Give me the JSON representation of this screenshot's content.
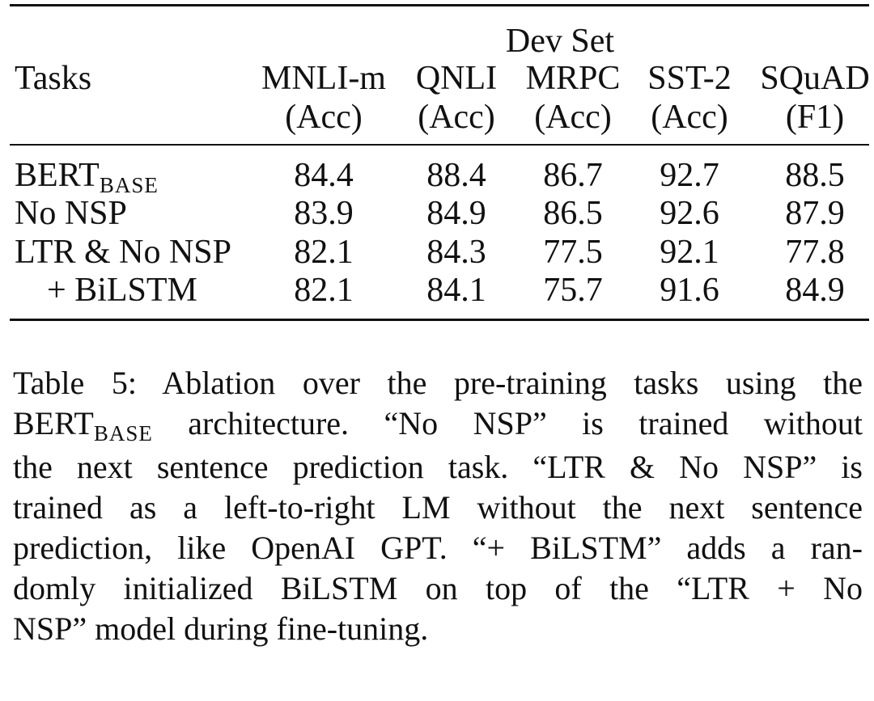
{
  "table": {
    "group_header": "Dev Set",
    "tasks_header": "Tasks",
    "columns": [
      {
        "name": "MNLI-m",
        "metric": "(Acc)"
      },
      {
        "name": "QNLI",
        "metric": "(Acc)"
      },
      {
        "name": "MRPC",
        "metric": "(Acc)"
      },
      {
        "name": "SST-2",
        "metric": "(Acc)"
      },
      {
        "name": "SQuAD",
        "metric": "(F1)"
      }
    ],
    "rows": [
      {
        "label": "BERT",
        "label_sub": "BASE",
        "values": [
          "84.4",
          "88.4",
          "86.7",
          "92.7",
          "88.5"
        ]
      },
      {
        "label": "No NSP",
        "label_sub": "",
        "values": [
          "83.9",
          "84.9",
          "86.5",
          "92.6",
          "87.9"
        ]
      },
      {
        "label": "LTR & No NSP",
        "label_sub": "",
        "values": [
          "82.1",
          "84.3",
          "77.5",
          "92.1",
          "77.8"
        ]
      },
      {
        "label": "+ BiLSTM",
        "label_sub": "",
        "values": [
          "82.1",
          "84.1",
          "75.7",
          "91.6",
          "84.9"
        ]
      }
    ]
  },
  "caption": {
    "line1": "Table 5: Ablation over the pre-training tasks using the",
    "line2_pre": "BERT",
    "line2_sub": "BASE",
    "line2_post": " architecture. “No NSP” is trained without",
    "line3": "the next sentence prediction task. “LTR & No NSP” is",
    "line4": "trained as a left-to-right LM without the next sentence",
    "line5": "prediction, like OpenAI GPT. “+ BiLSTM” adds a ran-",
    "line6": "domly initialized BiLSTM on top of the “LTR + No",
    "line7": "NSP” model during fine-tuning."
  }
}
